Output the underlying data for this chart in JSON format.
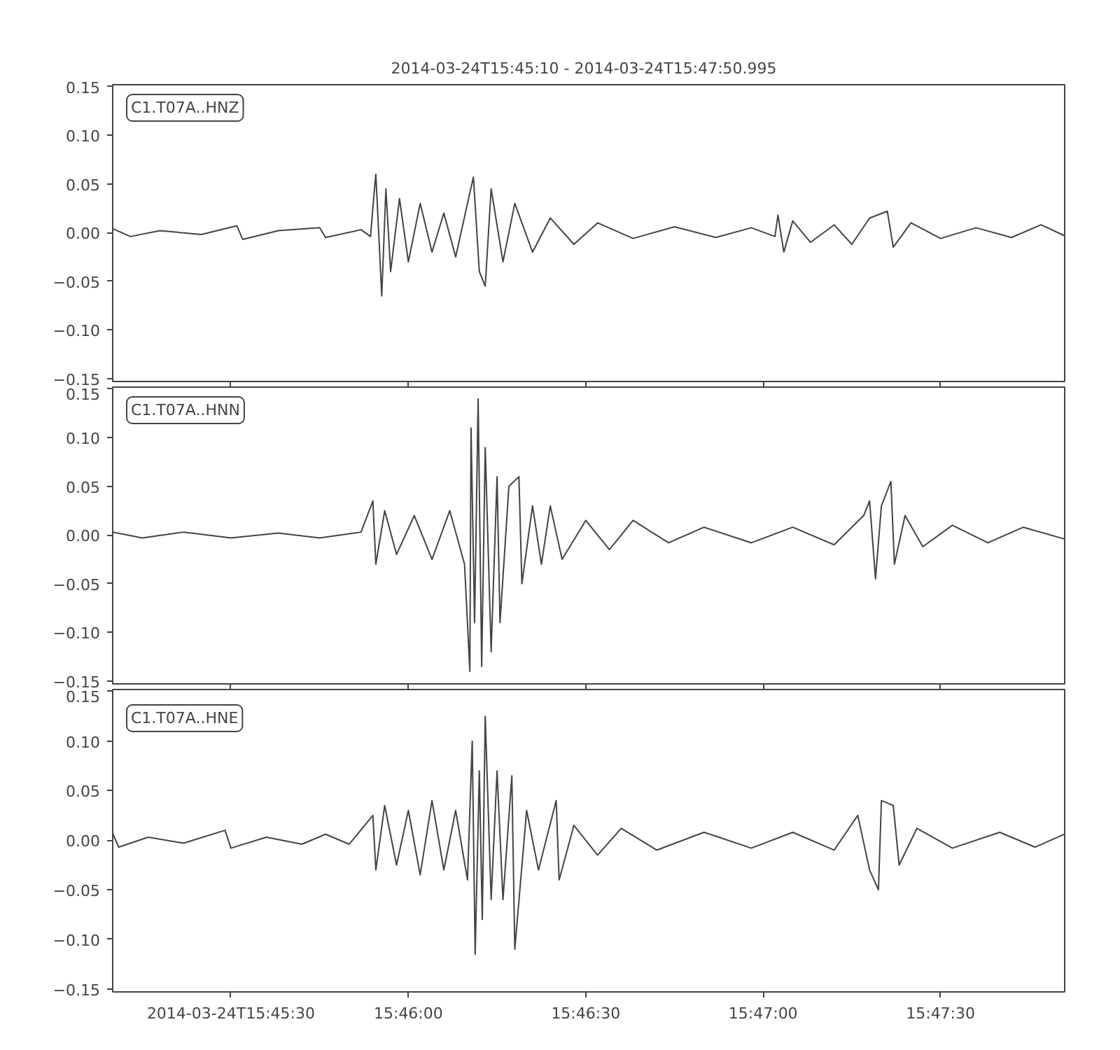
{
  "chart_data": [
    {
      "type": "line",
      "title": "2014-03-24T15:45:10  -  2014-03-24T15:47:50.995",
      "annotations": [
        "C1.T07A..HNZ"
      ],
      "xlim": [
        "2014-03-24T15:45:10",
        "2014-03-24T15:47:50.995"
      ],
      "ylim": [
        -0.153,
        0.152
      ],
      "yticks": [
        {
          "value": -0.15,
          "label": "−0.15"
        },
        {
          "value": -0.1,
          "label": "−0.10"
        },
        {
          "value": -0.05,
          "label": "−0.05"
        },
        {
          "value": 0,
          "label": "0.00"
        },
        {
          "value": 0.05,
          "label": "0.05"
        },
        {
          "value": 0.1,
          "label": "0.10"
        },
        {
          "value": 0.15,
          "label": "0.15"
        }
      ],
      "xticks": [
        {
          "value": "2014-03-24T15:45:30",
          "label": null
        },
        {
          "value": "2014-03-24T15:46:00",
          "label": null
        },
        {
          "value": "2014-03-24T15:46:30",
          "label": null
        },
        {
          "value": "2014-03-24T15:47:00",
          "label": null
        },
        {
          "value": "2014-03-24T15:47:30",
          "label": null
        }
      ],
      "tick_labels": "y",
      "grid": false,
      "line_style": "solid",
      "series": [
        {
          "color": "#444444",
          "x": [
            "2014-03-24T15:45:10",
            "2014-03-24T15:45:13",
            "2014-03-24T15:45:18",
            "2014-03-24T15:45:25",
            "2014-03-24T15:45:31",
            "2014-03-24T15:45:32",
            "2014-03-24T15:45:38",
            "2014-03-24T15:45:45",
            "2014-03-24T15:45:46",
            "2014-03-24T15:45:52",
            "2014-03-24T15:45:53.6",
            "2014-03-24T15:45:54.2",
            "2014-03-24T15:45:54.5",
            "2014-03-24T15:45:55.5",
            "2014-03-24T15:45:56.2",
            "2014-03-24T15:45:57",
            "2014-03-24T15:45:58.5",
            "2014-03-24T15:46:00",
            "2014-03-24T15:46:02",
            "2014-03-24T15:46:04",
            "2014-03-24T15:46:06",
            "2014-03-24T15:46:08",
            "2014-03-24T15:46:10",
            "2014-03-24T15:46:11",
            "2014-03-24T15:46:12",
            "2014-03-24T15:46:13",
            "2014-03-24T15:46:14",
            "2014-03-24T15:46:16",
            "2014-03-24T15:46:18",
            "2014-03-24T15:46:21",
            "2014-03-24T15:46:24",
            "2014-03-24T15:46:28",
            "2014-03-24T15:46:32",
            "2014-03-24T15:46:38",
            "2014-03-24T15:46:45",
            "2014-03-24T15:46:52",
            "2014-03-24T15:46:58",
            "2014-03-24T15:47:02",
            "2014-03-24T15:47:02.5",
            "2014-03-24T15:47:03.5",
            "2014-03-24T15:47:05",
            "2014-03-24T15:47:08",
            "2014-03-24T15:47:12",
            "2014-03-24T15:47:15",
            "2014-03-24T15:47:18",
            "2014-03-24T15:47:21",
            "2014-03-24T15:47:22",
            "2014-03-24T15:47:25",
            "2014-03-24T15:47:30",
            "2014-03-24T15:47:36",
            "2014-03-24T15:47:42",
            "2014-03-24T15:47:47",
            "2014-03-24T15:47:50.9"
          ],
          "values": [
            0.004,
            -0.004,
            0.002,
            -0.002,
            0.007,
            -0.007,
            0.002,
            0.005,
            -0.005,
            0.003,
            -0.004,
            0.04,
            0.06,
            -0.065,
            0.045,
            -0.04,
            0.035,
            -0.03,
            0.03,
            -0.02,
            0.02,
            -0.025,
            0.03,
            0.057,
            -0.04,
            -0.055,
            0.045,
            -0.03,
            0.03,
            -0.02,
            0.015,
            -0.012,
            0.01,
            -0.006,
            0.006,
            -0.005,
            0.005,
            -0.004,
            0.018,
            -0.02,
            0.012,
            -0.01,
            0.008,
            -0.012,
            0.015,
            0.022,
            -0.015,
            0.01,
            -0.006,
            0.005,
            -0.005,
            0.008,
            -0.003
          ]
        }
      ]
    },
    {
      "type": "line",
      "annotations": [
        "C1.T07A..HNN"
      ],
      "xlim": [
        "2014-03-24T15:45:10",
        "2014-03-24T15:47:50.995"
      ],
      "ylim": [
        -0.153,
        0.152
      ],
      "yticks": [
        {
          "value": -0.15,
          "label": "−0.15"
        },
        {
          "value": -0.1,
          "label": "−0.10"
        },
        {
          "value": -0.05,
          "label": "−0.05"
        },
        {
          "value": 0,
          "label": "0.00"
        },
        {
          "value": 0.05,
          "label": "0.05"
        },
        {
          "value": 0.1,
          "label": "0.10"
        },
        {
          "value": 0.15,
          "label": "0.15"
        }
      ],
      "xticks": [
        {
          "value": "2014-03-24T15:45:30",
          "label": null
        },
        {
          "value": "2014-03-24T15:46:00",
          "label": null
        },
        {
          "value": "2014-03-24T15:46:30",
          "label": null
        },
        {
          "value": "2014-03-24T15:47:00",
          "label": null
        },
        {
          "value": "2014-03-24T15:47:30",
          "label": null
        }
      ],
      "tick_labels": "y",
      "grid": false,
      "line_style": "solid",
      "series": [
        {
          "color": "#444444",
          "x": [
            "2014-03-24T15:45:10",
            "2014-03-24T15:45:15",
            "2014-03-24T15:45:22",
            "2014-03-24T15:45:30",
            "2014-03-24T15:45:38",
            "2014-03-24T15:45:45",
            "2014-03-24T15:45:52",
            "2014-03-24T15:45:54",
            "2014-03-24T15:45:54.5",
            "2014-03-24T15:45:56",
            "2014-03-24T15:45:58",
            "2014-03-24T15:46:01",
            "2014-03-24T15:46:04",
            "2014-03-24T15:46:07",
            "2014-03-24T15:46:09.5",
            "2014-03-24T15:46:10.4",
            "2014-03-24T15:46:10.6",
            "2014-03-24T15:46:11.2",
            "2014-03-24T15:46:11.8",
            "2014-03-24T15:46:12.4",
            "2014-03-24T15:46:13",
            "2014-03-24T15:46:14",
            "2014-03-24T15:46:15",
            "2014-03-24T15:46:15.5",
            "2014-03-24T15:46:17",
            "2014-03-24T15:46:18.7",
            "2014-03-24T15:46:19.2",
            "2014-03-24T15:46:21",
            "2014-03-24T15:46:22.5",
            "2014-03-24T15:46:24",
            "2014-03-24T15:46:26",
            "2014-03-24T15:46:30",
            "2014-03-24T15:46:34",
            "2014-03-24T15:46:38",
            "2014-03-24T15:46:44",
            "2014-03-24T15:46:50",
            "2014-03-24T15:46:58",
            "2014-03-24T15:47:05",
            "2014-03-24T15:47:12",
            "2014-03-24T15:47:17",
            "2014-03-24T15:47:18",
            "2014-03-24T15:47:19",
            "2014-03-24T15:47:20",
            "2014-03-24T15:47:21.6",
            "2014-03-24T15:47:22.2",
            "2014-03-24T15:47:24",
            "2014-03-24T15:47:27",
            "2014-03-24T15:47:32",
            "2014-03-24T15:47:38",
            "2014-03-24T15:47:44",
            "2014-03-24T15:47:50.9"
          ],
          "values": [
            0.003,
            -0.003,
            0.003,
            -0.003,
            0.002,
            -0.003,
            0.003,
            0.035,
            -0.03,
            0.025,
            -0.02,
            0.02,
            -0.025,
            0.025,
            -0.03,
            -0.14,
            0.11,
            -0.09,
            0.14,
            -0.135,
            0.09,
            -0.12,
            0.06,
            -0.09,
            0.05,
            0.06,
            -0.05,
            0.03,
            -0.03,
            0.03,
            -0.025,
            0.015,
            -0.015,
            0.015,
            -0.008,
            0.008,
            -0.008,
            0.008,
            -0.01,
            0.02,
            0.035,
            -0.045,
            0.03,
            0.055,
            -0.03,
            0.02,
            -0.012,
            0.01,
            -0.008,
            0.008,
            -0.004
          ]
        }
      ]
    },
    {
      "type": "line",
      "annotations": [
        "C1.T07A..HNE"
      ],
      "xlim": [
        "2014-03-24T15:45:10",
        "2014-03-24T15:47:50.995"
      ],
      "ylim": [
        -0.153,
        0.152
      ],
      "yticks": [
        {
          "value": -0.15,
          "label": "−0.15"
        },
        {
          "value": -0.1,
          "label": "−0.10"
        },
        {
          "value": -0.05,
          "label": "−0.05"
        },
        {
          "value": 0,
          "label": "0.00"
        },
        {
          "value": 0.05,
          "label": "0.05"
        },
        {
          "value": 0.1,
          "label": "0.10"
        },
        {
          "value": 0.15,
          "label": "0.15"
        }
      ],
      "xticks": [
        {
          "value": "2014-03-24T15:45:30",
          "label": "2014-03-24T15:45:30"
        },
        {
          "value": "2014-03-24T15:46:00",
          "label": "15:46:00"
        },
        {
          "value": "2014-03-24T15:46:30",
          "label": "15:46:30"
        },
        {
          "value": "2014-03-24T15:47:00",
          "label": "15:47:00"
        },
        {
          "value": "2014-03-24T15:47:30",
          "label": "15:47:30"
        }
      ],
      "grid": false,
      "line_style": "solid",
      "series": [
        {
          "color": "#444444",
          "x": [
            "2014-03-24T15:45:10",
            "2014-03-24T15:45:11",
            "2014-03-24T15:45:16",
            "2014-03-24T15:45:22",
            "2014-03-24T15:45:29",
            "2014-03-24T15:45:30",
            "2014-03-24T15:45:36",
            "2014-03-24T15:45:42",
            "2014-03-24T15:45:46",
            "2014-03-24T15:45:50",
            "2014-03-24T15:45:54",
            "2014-03-24T15:45:54.5",
            "2014-03-24T15:45:56",
            "2014-03-24T15:45:58",
            "2014-03-24T15:46:00",
            "2014-03-24T15:46:02",
            "2014-03-24T15:46:04",
            "2014-03-24T15:46:06",
            "2014-03-24T15:46:08",
            "2014-03-24T15:46:10",
            "2014-03-24T15:46:10.8",
            "2014-03-24T15:46:11.3",
            "2014-03-24T15:46:12",
            "2014-03-24T15:46:12.5",
            "2014-03-24T15:46:13",
            "2014-03-24T15:46:14",
            "2014-03-24T15:46:15",
            "2014-03-24T15:46:16",
            "2014-03-24T15:46:17.5",
            "2014-03-24T15:46:18",
            "2014-03-24T15:46:20",
            "2014-03-24T15:46:22",
            "2014-03-24T15:46:25",
            "2014-03-24T15:46:25.5",
            "2014-03-24T15:46:28",
            "2014-03-24T15:46:32",
            "2014-03-24T15:46:36",
            "2014-03-24T15:46:42",
            "2014-03-24T15:46:50",
            "2014-03-24T15:46:58",
            "2014-03-24T15:47:05",
            "2014-03-24T15:47:12",
            "2014-03-24T15:47:16",
            "2014-03-24T15:47:18",
            "2014-03-24T15:47:19.5",
            "2014-03-24T15:47:20",
            "2014-03-24T15:47:22",
            "2014-03-24T15:47:23",
            "2014-03-24T15:47:26",
            "2014-03-24T15:47:32",
            "2014-03-24T15:47:40",
            "2014-03-24T15:47:46",
            "2014-03-24T15:47:50.9"
          ],
          "values": [
            0.007,
            -0.007,
            0.003,
            -0.003,
            0.01,
            -0.008,
            0.003,
            -0.004,
            0.006,
            -0.004,
            0.025,
            -0.03,
            0.035,
            -0.025,
            0.03,
            -0.035,
            0.04,
            -0.03,
            0.03,
            -0.04,
            0.1,
            -0.115,
            0.07,
            -0.08,
            0.125,
            -0.06,
            0.07,
            -0.06,
            0.065,
            -0.11,
            0.03,
            -0.03,
            0.04,
            -0.04,
            0.015,
            -0.015,
            0.012,
            -0.01,
            0.008,
            -0.008,
            0.008,
            -0.01,
            0.025,
            -0.03,
            -0.05,
            0.04,
            0.035,
            -0.025,
            0.012,
            -0.008,
            0.008,
            -0.007,
            0.006
          ]
        }
      ]
    }
  ]
}
